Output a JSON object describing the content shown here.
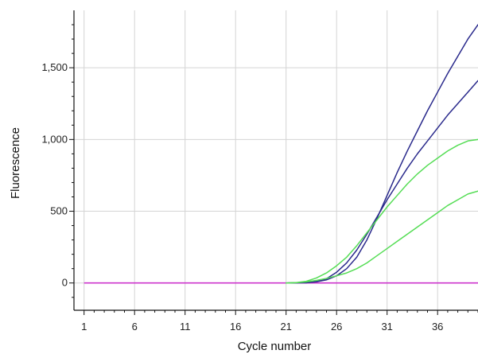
{
  "chart_data": {
    "type": "line",
    "title": "",
    "xlabel": "Cycle number",
    "ylabel": "Fluorescence",
    "xlim": [
      0,
      40
    ],
    "ylim": [
      -190,
      1900
    ],
    "xticks": [
      1,
      6,
      11,
      16,
      21,
      26,
      31,
      36
    ],
    "xtick_labels": [
      "1",
      "6",
      "11",
      "16",
      "21",
      "26",
      "31",
      "36"
    ],
    "yticks": [
      0,
      500,
      1000,
      1500
    ],
    "ytick_labels": [
      "0",
      "500",
      "1,000",
      "1,500"
    ],
    "grid": true,
    "legend": "none",
    "threshold": {
      "y": 0,
      "x": [
        1,
        40
      ],
      "color": "#cc33cc"
    },
    "series": [
      {
        "color": "#2a2a8c",
        "x": [
          21,
          23,
          24,
          25,
          26,
          27,
          28,
          29,
          30,
          31,
          32,
          33,
          34,
          35,
          36,
          37,
          38,
          39,
          40
        ],
        "y": [
          0,
          2,
          8,
          22,
          50,
          100,
          180,
          300,
          450,
          610,
          770,
          920,
          1060,
          1200,
          1330,
          1460,
          1580,
          1700,
          1800
        ]
      },
      {
        "color": "#2a2a8c",
        "x": [
          21,
          23,
          24,
          25,
          26,
          27,
          28,
          29,
          30,
          31,
          32,
          33,
          34,
          35,
          36,
          37,
          38,
          39,
          40
        ],
        "y": [
          0,
          2,
          10,
          30,
          75,
          140,
          230,
          340,
          460,
          580,
          690,
          800,
          900,
          990,
          1080,
          1170,
          1250,
          1330,
          1410
        ]
      },
      {
        "color": "#55dd55",
        "x": [
          21,
          22,
          23,
          24,
          25,
          26,
          27,
          28,
          29,
          30,
          31,
          32,
          33,
          34,
          35,
          36,
          37,
          38,
          39,
          40
        ],
        "y": [
          0,
          3,
          12,
          35,
          70,
          120,
          180,
          260,
          350,
          440,
          530,
          610,
          690,
          760,
          820,
          870,
          920,
          960,
          990,
          1000
        ]
      },
      {
        "color": "#55dd55",
        "x": [
          21,
          22,
          23,
          24,
          25,
          26,
          27,
          28,
          29,
          30,
          31,
          32,
          33,
          34,
          35,
          36,
          37,
          38,
          39,
          40
        ],
        "y": [
          0,
          2,
          8,
          18,
          32,
          50,
          70,
          100,
          140,
          190,
          240,
          290,
          340,
          390,
          440,
          490,
          540,
          580,
          620,
          640
        ]
      }
    ]
  }
}
